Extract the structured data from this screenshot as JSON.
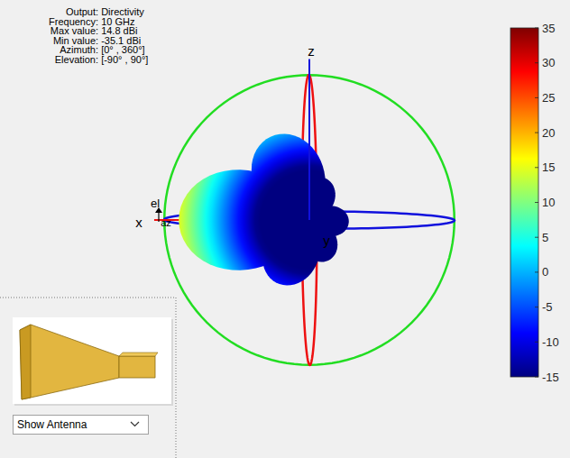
{
  "chart_data": {
    "type": "pattern3d",
    "separator": " : ",
    "info": [
      {
        "label": "Output",
        "value": "Directivity"
      },
      {
        "label": "Frequency",
        "value": "10 GHz"
      },
      {
        "label": "Max value",
        "value": 14.8,
        "unit": "dBi"
      },
      {
        "label": "Min value",
        "value": -35.1,
        "unit": "dBi"
      },
      {
        "label": "Azimuth",
        "value": "[0° , 360°]"
      },
      {
        "label": "Elevation",
        "value": "[-90° , 90°]"
      }
    ],
    "axis_labels": {
      "x": "x",
      "y": "y",
      "z": "z",
      "az": "az",
      "el": "el"
    },
    "lobes": [
      {
        "azimuth": 0,
        "elevation": 0,
        "value": 14.8
      },
      {
        "azimuth": 0,
        "elevation": 65,
        "value": 0
      },
      {
        "azimuth": 0,
        "elevation": -62,
        "value": -8
      },
      {
        "azimuth": 180,
        "elevation": -3,
        "value": -20
      },
      {
        "azimuth": 180,
        "elevation": 70,
        "value": -18
      },
      {
        "azimuth": 180,
        "elevation": -65,
        "value": -18
      }
    ],
    "colorbar": {
      "lim": [
        -15,
        35
      ],
      "ticks": [
        -15,
        -10,
        -5,
        0,
        5,
        10,
        15,
        20,
        25,
        30,
        35
      ]
    },
    "dropdown": "Show Antenna"
  }
}
